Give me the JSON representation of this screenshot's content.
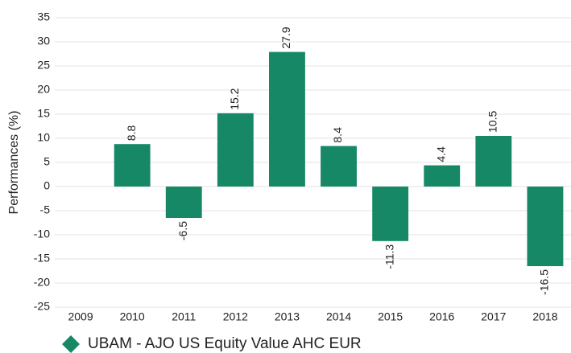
{
  "chart_data": {
    "type": "bar",
    "y_label": "Performances (%)",
    "categories": [
      "2009",
      "2010",
      "2011",
      "2012",
      "2013",
      "2014",
      "2015",
      "2016",
      "2017",
      "2018"
    ],
    "series": [
      {
        "name": "UBAM - AJO US Equity Value AHC EUR",
        "color": "#168866",
        "values": [
          null,
          8.8,
          -6.5,
          15.2,
          27.9,
          8.4,
          -11.3,
          4.4,
          10.5,
          -16.5
        ]
      }
    ],
    "ylim": [
      -25,
      35
    ],
    "yticks": [
      -25,
      -20,
      -15,
      -10,
      -5,
      0,
      5,
      10,
      15,
      20,
      25,
      30,
      35
    ],
    "grid": true,
    "legend": "bottom-left"
  }
}
